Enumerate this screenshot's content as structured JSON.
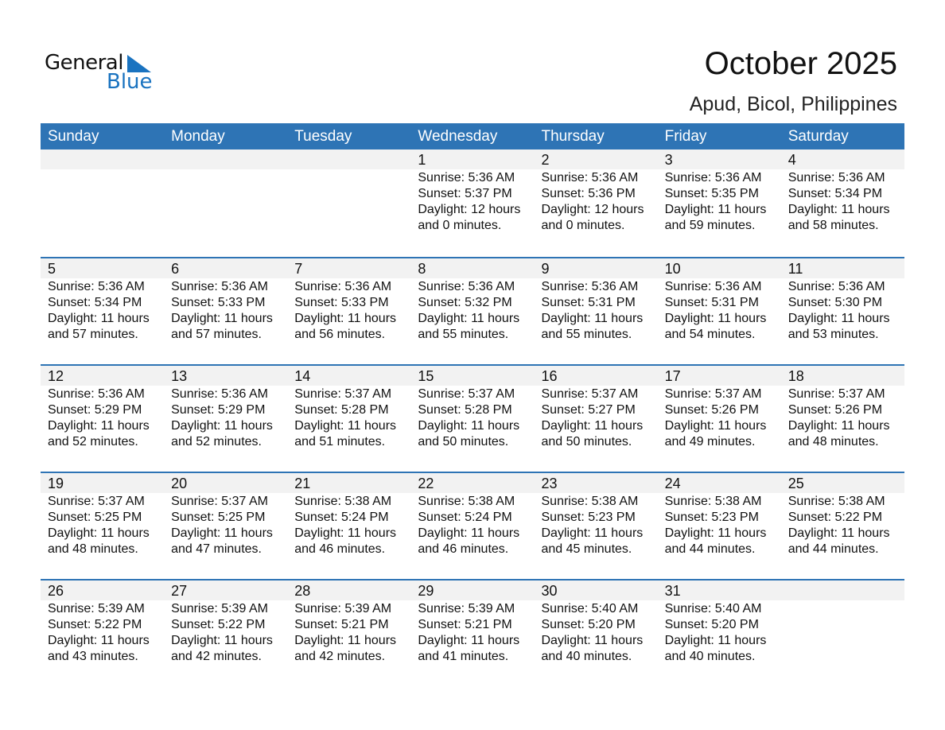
{
  "logo": {
    "text1": "General",
    "text2": "Blue"
  },
  "title": "October 2025",
  "location": "Apud, Bicol, Philippines",
  "colors": {
    "header": "#2e74b5",
    "band": "#f2f2f2",
    "logo_blue": "#1a73c0"
  },
  "days": [
    "Sunday",
    "Monday",
    "Tuesday",
    "Wednesday",
    "Thursday",
    "Friday",
    "Saturday"
  ],
  "weeks": [
    [
      null,
      null,
      null,
      {
        "day": "1",
        "sunrise": "Sunrise: 5:36 AM",
        "sunset": "Sunset: 5:37 PM",
        "daylight": "Daylight: 12 hours",
        "minutes": "and 0 minutes."
      },
      {
        "day": "2",
        "sunrise": "Sunrise: 5:36 AM",
        "sunset": "Sunset: 5:36 PM",
        "daylight": "Daylight: 12 hours",
        "minutes": "and 0 minutes."
      },
      {
        "day": "3",
        "sunrise": "Sunrise: 5:36 AM",
        "sunset": "Sunset: 5:35 PM",
        "daylight": "Daylight: 11 hours",
        "minutes": "and 59 minutes."
      },
      {
        "day": "4",
        "sunrise": "Sunrise: 5:36 AM",
        "sunset": "Sunset: 5:34 PM",
        "daylight": "Daylight: 11 hours",
        "minutes": "and 58 minutes."
      }
    ],
    [
      {
        "day": "5",
        "sunrise": "Sunrise: 5:36 AM",
        "sunset": "Sunset: 5:34 PM",
        "daylight": "Daylight: 11 hours",
        "minutes": "and 57 minutes."
      },
      {
        "day": "6",
        "sunrise": "Sunrise: 5:36 AM",
        "sunset": "Sunset: 5:33 PM",
        "daylight": "Daylight: 11 hours",
        "minutes": "and 57 minutes."
      },
      {
        "day": "7",
        "sunrise": "Sunrise: 5:36 AM",
        "sunset": "Sunset: 5:33 PM",
        "daylight": "Daylight: 11 hours",
        "minutes": "and 56 minutes."
      },
      {
        "day": "8",
        "sunrise": "Sunrise: 5:36 AM",
        "sunset": "Sunset: 5:32 PM",
        "daylight": "Daylight: 11 hours",
        "minutes": "and 55 minutes."
      },
      {
        "day": "9",
        "sunrise": "Sunrise: 5:36 AM",
        "sunset": "Sunset: 5:31 PM",
        "daylight": "Daylight: 11 hours",
        "minutes": "and 55 minutes."
      },
      {
        "day": "10",
        "sunrise": "Sunrise: 5:36 AM",
        "sunset": "Sunset: 5:31 PM",
        "daylight": "Daylight: 11 hours",
        "minutes": "and 54 minutes."
      },
      {
        "day": "11",
        "sunrise": "Sunrise: 5:36 AM",
        "sunset": "Sunset: 5:30 PM",
        "daylight": "Daylight: 11 hours",
        "minutes": "and 53 minutes."
      }
    ],
    [
      {
        "day": "12",
        "sunrise": "Sunrise: 5:36 AM",
        "sunset": "Sunset: 5:29 PM",
        "daylight": "Daylight: 11 hours",
        "minutes": "and 52 minutes."
      },
      {
        "day": "13",
        "sunrise": "Sunrise: 5:36 AM",
        "sunset": "Sunset: 5:29 PM",
        "daylight": "Daylight: 11 hours",
        "minutes": "and 52 minutes."
      },
      {
        "day": "14",
        "sunrise": "Sunrise: 5:37 AM",
        "sunset": "Sunset: 5:28 PM",
        "daylight": "Daylight: 11 hours",
        "minutes": "and 51 minutes."
      },
      {
        "day": "15",
        "sunrise": "Sunrise: 5:37 AM",
        "sunset": "Sunset: 5:28 PM",
        "daylight": "Daylight: 11 hours",
        "minutes": "and 50 minutes."
      },
      {
        "day": "16",
        "sunrise": "Sunrise: 5:37 AM",
        "sunset": "Sunset: 5:27 PM",
        "daylight": "Daylight: 11 hours",
        "minutes": "and 50 minutes."
      },
      {
        "day": "17",
        "sunrise": "Sunrise: 5:37 AM",
        "sunset": "Sunset: 5:26 PM",
        "daylight": "Daylight: 11 hours",
        "minutes": "and 49 minutes."
      },
      {
        "day": "18",
        "sunrise": "Sunrise: 5:37 AM",
        "sunset": "Sunset: 5:26 PM",
        "daylight": "Daylight: 11 hours",
        "minutes": "and 48 minutes."
      }
    ],
    [
      {
        "day": "19",
        "sunrise": "Sunrise: 5:37 AM",
        "sunset": "Sunset: 5:25 PM",
        "daylight": "Daylight: 11 hours",
        "minutes": "and 48 minutes."
      },
      {
        "day": "20",
        "sunrise": "Sunrise: 5:37 AM",
        "sunset": "Sunset: 5:25 PM",
        "daylight": "Daylight: 11 hours",
        "minutes": "and 47 minutes."
      },
      {
        "day": "21",
        "sunrise": "Sunrise: 5:38 AM",
        "sunset": "Sunset: 5:24 PM",
        "daylight": "Daylight: 11 hours",
        "minutes": "and 46 minutes."
      },
      {
        "day": "22",
        "sunrise": "Sunrise: 5:38 AM",
        "sunset": "Sunset: 5:24 PM",
        "daylight": "Daylight: 11 hours",
        "minutes": "and 46 minutes."
      },
      {
        "day": "23",
        "sunrise": "Sunrise: 5:38 AM",
        "sunset": "Sunset: 5:23 PM",
        "daylight": "Daylight: 11 hours",
        "minutes": "and 45 minutes."
      },
      {
        "day": "24",
        "sunrise": "Sunrise: 5:38 AM",
        "sunset": "Sunset: 5:23 PM",
        "daylight": "Daylight: 11 hours",
        "minutes": "and 44 minutes."
      },
      {
        "day": "25",
        "sunrise": "Sunrise: 5:38 AM",
        "sunset": "Sunset: 5:22 PM",
        "daylight": "Daylight: 11 hours",
        "minutes": "and 44 minutes."
      }
    ],
    [
      {
        "day": "26",
        "sunrise": "Sunrise: 5:39 AM",
        "sunset": "Sunset: 5:22 PM",
        "daylight": "Daylight: 11 hours",
        "minutes": "and 43 minutes."
      },
      {
        "day": "27",
        "sunrise": "Sunrise: 5:39 AM",
        "sunset": "Sunset: 5:22 PM",
        "daylight": "Daylight: 11 hours",
        "minutes": "and 42 minutes."
      },
      {
        "day": "28",
        "sunrise": "Sunrise: 5:39 AM",
        "sunset": "Sunset: 5:21 PM",
        "daylight": "Daylight: 11 hours",
        "minutes": "and 42 minutes."
      },
      {
        "day": "29",
        "sunrise": "Sunrise: 5:39 AM",
        "sunset": "Sunset: 5:21 PM",
        "daylight": "Daylight: 11 hours",
        "minutes": "and 41 minutes."
      },
      {
        "day": "30",
        "sunrise": "Sunrise: 5:40 AM",
        "sunset": "Sunset: 5:20 PM",
        "daylight": "Daylight: 11 hours",
        "minutes": "and 40 minutes."
      },
      {
        "day": "31",
        "sunrise": "Sunrise: 5:40 AM",
        "sunset": "Sunset: 5:20 PM",
        "daylight": "Daylight: 11 hours",
        "minutes": "and 40 minutes."
      },
      null
    ]
  ]
}
